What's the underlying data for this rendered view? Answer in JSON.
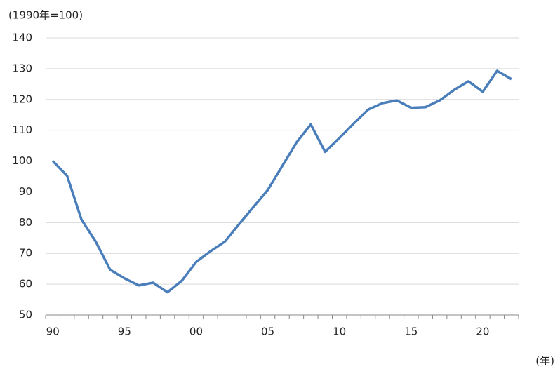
{
  "chart_data": {
    "type": "line",
    "y_label": "(1990年=100)",
    "x_label": "(年)",
    "categories": [
      "90",
      null,
      null,
      null,
      null,
      "95",
      null,
      null,
      null,
      null,
      "00",
      null,
      null,
      null,
      null,
      "05",
      null,
      null,
      null,
      null,
      "10",
      null,
      null,
      null,
      null,
      "15",
      null,
      null,
      null,
      null,
      "20",
      null,
      null
    ],
    "series": [
      {
        "color": "#4a7ebb",
        "values": [
          100,
          95.2,
          81,
          73.8,
          64.7,
          61.9,
          59.6,
          60.5,
          57.4,
          61.1,
          67.2,
          70.7,
          73.8,
          79.5,
          85.1,
          90.6,
          98.3,
          106,
          111.9,
          103,
          107.5,
          112.2,
          116.7,
          118.8,
          119.7,
          117.3,
          117.5,
          119.7,
          123.1,
          125.9,
          122.5,
          129.3,
          126.6
        ]
      }
    ],
    "ylim": [
      50,
      140
    ],
    "yticks": [
      50,
      60,
      70,
      80,
      90,
      100,
      110,
      120,
      130,
      140
    ],
    "grid": true
  }
}
